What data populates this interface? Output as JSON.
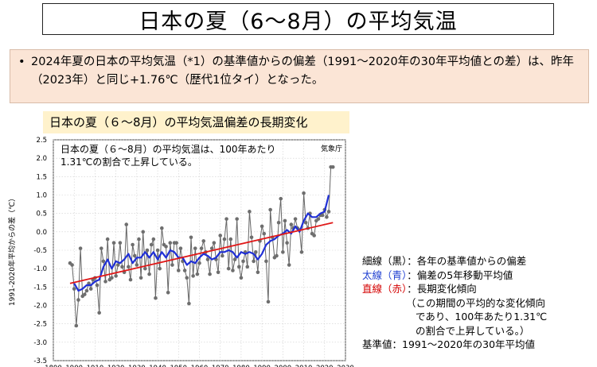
{
  "header": {
    "title": "日本の夏（6～8月）の平均気温"
  },
  "bullet": {
    "symbol": "•",
    "text": "2024年夏の日本の平均気温（*1）の基準値からの偏差（1991～2020年の30年平均値との差）は、昨年（2023年）と同じ+1.76℃（歴代1位タイ）となった。"
  },
  "subtitle": "日本の夏（６～8月）の平均気温偏差の長期変化",
  "chart_data": {
    "type": "line",
    "annotation": "日本の夏（６～8月）の平均気温は、100年あたり\n1.31℃の割合で上昇している。",
    "source": "気象庁",
    "ylabel": "1991-2020年平均からの差（℃）",
    "xlim": [
      1890,
      2030
    ],
    "ylim": [
      -3.5,
      2.5
    ],
    "xticks": [
      1890,
      1900,
      1910,
      1920,
      1930,
      1940,
      1950,
      1960,
      1970,
      1980,
      1990,
      2000,
      2010,
      2020,
      2030
    ],
    "yticks": [
      -3.5,
      -3.0,
      -2.5,
      -2.0,
      -1.5,
      -1.0,
      -0.5,
      0.0,
      0.5,
      1.0,
      1.5,
      2.0,
      2.5
    ],
    "grid": true,
    "series": [
      {
        "name": "細線（黒）",
        "color": "#666666",
        "x": [
          1898,
          1899,
          1900,
          1901,
          1902,
          1903,
          1904,
          1905,
          1906,
          1907,
          1908,
          1909,
          1910,
          1911,
          1912,
          1913,
          1914,
          1915,
          1916,
          1917,
          1918,
          1919,
          1920,
          1921,
          1922,
          1923,
          1924,
          1925,
          1926,
          1927,
          1928,
          1929,
          1930,
          1931,
          1932,
          1933,
          1934,
          1935,
          1936,
          1937,
          1938,
          1939,
          1940,
          1941,
          1942,
          1943,
          1944,
          1945,
          1946,
          1947,
          1948,
          1949,
          1950,
          1951,
          1952,
          1953,
          1954,
          1955,
          1956,
          1957,
          1958,
          1959,
          1960,
          1961,
          1962,
          1963,
          1964,
          1965,
          1966,
          1967,
          1968,
          1969,
          1970,
          1971,
          1972,
          1973,
          1974,
          1975,
          1976,
          1977,
          1978,
          1979,
          1980,
          1981,
          1982,
          1983,
          1984,
          1985,
          1986,
          1987,
          1988,
          1989,
          1990,
          1991,
          1992,
          1993,
          1994,
          1995,
          1996,
          1997,
          1998,
          1999,
          2000,
          2001,
          2002,
          2003,
          2004,
          2005,
          2006,
          2007,
          2008,
          2009,
          2010,
          2011,
          2012,
          2013,
          2014,
          2015,
          2016,
          2017,
          2018,
          2019,
          2020,
          2021,
          2022,
          2023,
          2024
        ],
        "values": [
          -0.85,
          -0.9,
          -1.55,
          -2.55,
          -1.85,
          -0.45,
          -1.75,
          -1.7,
          -1.6,
          -1.4,
          -1.55,
          -1.3,
          -1.25,
          -1.45,
          -2.2,
          -0.45,
          -0.8,
          -1.35,
          -0.2,
          -1.3,
          -1.25,
          -0.3,
          -1.2,
          -0.9,
          -0.3,
          -0.95,
          -1.1,
          0.2,
          -0.95,
          -1.3,
          -0.35,
          -0.65,
          -0.9,
          -0.2,
          -1.25,
          0.0,
          -1.0,
          -0.5,
          -1.15,
          -0.35,
          -0.2,
          -1.8,
          -0.5,
          -1.0,
          0.1,
          -0.35,
          -0.4,
          -1.65,
          -0.3,
          -0.9,
          -0.3,
          -0.3,
          -1.05,
          -0.45,
          -0.8,
          -1.05,
          -1.25,
          -1.95,
          -0.15,
          -1.2,
          -0.45,
          -1.15,
          -0.85,
          -0.45,
          -0.25,
          -0.55,
          -0.75,
          -1.15,
          -0.45,
          -0.3,
          -0.75,
          -1.1,
          -0.1,
          -0.65,
          -0.2,
          0.35,
          -1.0,
          -0.2,
          -1.05,
          -0.75,
          0.35,
          -0.95,
          -1.25,
          -0.8,
          -0.55,
          -0.95,
          0.55,
          -0.15,
          -0.8,
          -0.55,
          -1.1,
          -0.25,
          0.15,
          -0.05,
          -0.8,
          -1.9,
          0.6,
          -0.15,
          -0.7,
          -0.65,
          0.25,
          0.9,
          -0.55,
          0.3,
          -0.3,
          -0.9,
          0.2,
          0.1,
          0.35,
          0.1,
          0.05,
          -0.55,
          1.05,
          0.25,
          0.1,
          0.5,
          -0.05,
          -0.1,
          0.3,
          0.35,
          0.45,
          0.45,
          0.6,
          0.4,
          0.55,
          1.76,
          1.76
        ]
      },
      {
        "name": "太線（青）",
        "color": "#1f2fd6",
        "x": [
          1900,
          1902,
          1904,
          1906,
          1908,
          1910,
          1912,
          1914,
          1916,
          1918,
          1920,
          1922,
          1924,
          1926,
          1928,
          1930,
          1932,
          1934,
          1936,
          1938,
          1940,
          1942,
          1944,
          1946,
          1948,
          1950,
          1952,
          1954,
          1956,
          1958,
          1960,
          1962,
          1964,
          1966,
          1968,
          1970,
          1972,
          1974,
          1976,
          1978,
          1980,
          1982,
          1984,
          1986,
          1988,
          1990,
          1992,
          1994,
          1996,
          1998,
          2000,
          2002,
          2004,
          2006,
          2008,
          2010,
          2012,
          2014,
          2016,
          2018,
          2020,
          2022
        ],
        "values": [
          -1.4,
          -1.6,
          -1.55,
          -1.45,
          -1.45,
          -1.35,
          -1.3,
          -0.95,
          -0.75,
          -1.0,
          -0.8,
          -0.85,
          -0.75,
          -0.6,
          -0.85,
          -0.7,
          -0.7,
          -0.55,
          -0.7,
          -0.55,
          -0.75,
          -0.55,
          -0.7,
          -0.5,
          -0.55,
          -0.7,
          -0.7,
          -0.9,
          -0.8,
          -0.85,
          -0.7,
          -0.6,
          -0.65,
          -0.75,
          -0.7,
          -0.55,
          -0.55,
          -0.5,
          -0.55,
          -0.7,
          -0.55,
          -0.6,
          -0.55,
          -0.6,
          -0.75,
          -0.6,
          -0.35,
          -0.25,
          -0.2,
          -0.1,
          -0.05,
          0.05,
          -0.05,
          0.15,
          0.0,
          0.3,
          0.5,
          0.4,
          0.4,
          0.5,
          0.55,
          1.0
        ]
      },
      {
        "name": "直線（赤）",
        "color": "#e01818",
        "x": [
          1898,
          2024
        ],
        "values": [
          -1.4,
          0.25
        ]
      }
    ]
  },
  "legend": {
    "line1_key": "細線（黒）",
    "line1_text": "：各年の基準値からの偏差",
    "line2_key": "太線（青）",
    "line2_text": "：偏差の5年移動平均値",
    "line3_key": "直線（赤）",
    "line3_text": "：長期変化傾向",
    "note1": "（この期間の平均的な変化傾向",
    "note2": "であり、100年あたり1.31℃",
    "note3": "の割合で上昇している。）",
    "baseline": "基準値：1991～2020年の30年平均値"
  }
}
